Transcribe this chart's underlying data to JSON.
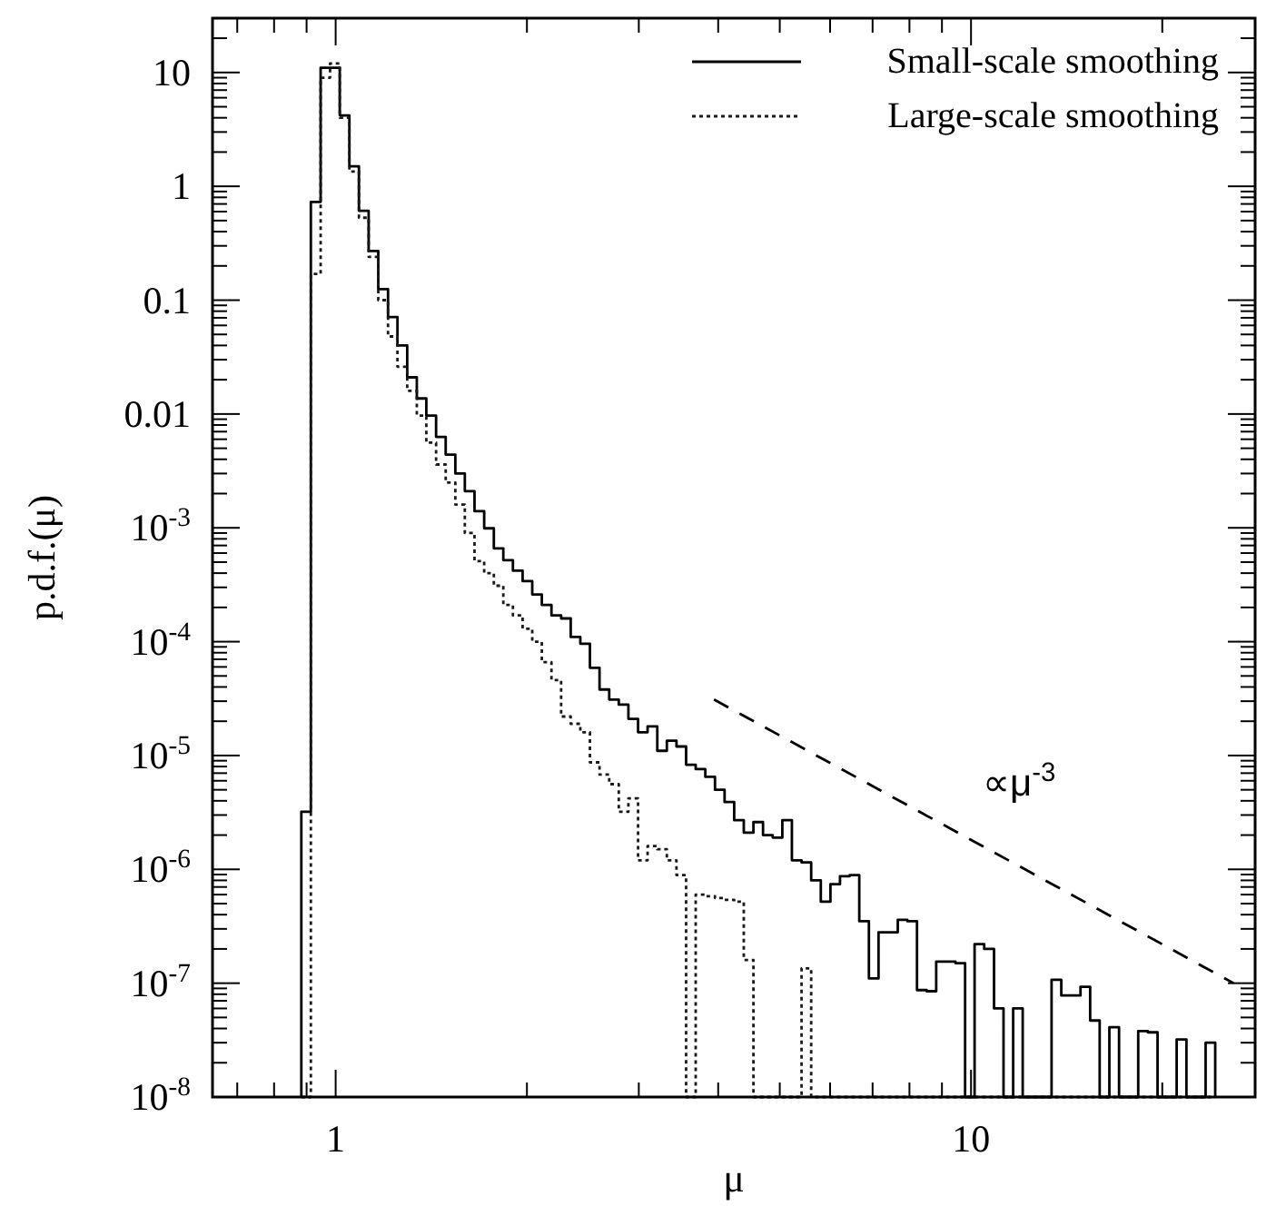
{
  "chart_data": {
    "type": "histogram",
    "xlabel": "μ",
    "ylabel": "p.d.f.(μ)",
    "log": "xy",
    "xlim": [
      0.64,
      28
    ],
    "ylim": [
      1e-08,
      30
    ],
    "xticks": [
      {
        "value": 0.7,
        "label": null
      },
      {
        "value": 0.8,
        "label": null
      },
      {
        "value": 0.9,
        "label": null
      },
      1,
      {
        "value": 2,
        "label": null
      },
      {
        "value": 3,
        "label": null
      },
      {
        "value": 4,
        "label": null
      },
      {
        "value": 5,
        "label": null
      },
      {
        "value": 6,
        "label": null
      },
      {
        "value": 7,
        "label": null
      },
      {
        "value": 8,
        "label": null
      },
      {
        "value": 9,
        "label": null
      },
      10,
      {
        "value": 20,
        "label": null
      }
    ],
    "yticks": [
      {
        "value": 1e-08,
        "label": "10$^{-8}$"
      },
      {
        "value": 1e-07,
        "label": "10$^{-7}$"
      },
      {
        "value": 1e-06,
        "label": "10$^{-6}$"
      },
      {
        "value": 1e-05,
        "label": "10$^{-5}$"
      },
      {
        "value": 0.0001,
        "label": "10$^{-4}$"
      },
      {
        "value": 0.001,
        "label": "10$^{-3}$"
      },
      {
        "value": 0.01,
        "label": "0.01"
      },
      {
        "value": 0.1,
        "label": "0.1"
      },
      1,
      10,
      {
        "value": 2e-08,
        "label": null
      },
      {
        "value": 3e-08,
        "label": null
      },
      {
        "value": 4e-08,
        "label": null
      },
      {
        "value": 5e-08,
        "label": null
      },
      {
        "value": 6e-08,
        "label": null
      },
      {
        "value": 7e-08,
        "label": null
      },
      {
        "value": 8e-08,
        "label": null
      },
      {
        "value": 9e-08,
        "label": null
      },
      {
        "value": 2e-07,
        "label": null
      },
      {
        "value": 3e-07,
        "label": null
      },
      {
        "value": 4e-07,
        "label": null
      },
      {
        "value": 5e-07,
        "label": null
      },
      {
        "value": 6e-07,
        "label": null
      },
      {
        "value": 7e-07,
        "label": null
      },
      {
        "value": 8e-07,
        "label": null
      },
      {
        "value": 9e-07,
        "label": null
      },
      {
        "value": 2e-06,
        "label": null
      },
      {
        "value": 3e-06,
        "label": null
      },
      {
        "value": 4e-06,
        "label": null
      },
      {
        "value": 5e-06,
        "label": null
      },
      {
        "value": 6e-06,
        "label": null
      },
      {
        "value": 7e-06,
        "label": null
      },
      {
        "value": 8e-06,
        "label": null
      },
      {
        "value": 9e-06,
        "label": null
      },
      {
        "value": 2e-05,
        "label": null
      },
      {
        "value": 3e-05,
        "label": null
      },
      {
        "value": 4e-05,
        "label": null
      },
      {
        "value": 5e-05,
        "label": null
      },
      {
        "value": 6e-05,
        "label": null
      },
      {
        "value": 7e-05,
        "label": null
      },
      {
        "value": 8e-05,
        "label": null
      },
      {
        "value": 9e-05,
        "label": null
      },
      {
        "value": 0.0002,
        "label": null
      },
      {
        "value": 0.0003,
        "label": null
      },
      {
        "value": 0.0004,
        "label": null
      },
      {
        "value": 0.0005,
        "label": null
      },
      {
        "value": 0.0006,
        "label": null
      },
      {
        "value": 0.0007,
        "label": null
      },
      {
        "value": 0.0008,
        "label": null
      },
      {
        "value": 0.0009,
        "label": null
      },
      {
        "value": 0.002,
        "label": null
      },
      {
        "value": 0.003,
        "label": null
      },
      {
        "value": 0.004,
        "label": null
      },
      {
        "value": 0.005,
        "label": null
      },
      {
        "value": 0.006,
        "label": null
      },
      {
        "value": 0.007,
        "label": null
      },
      {
        "value": 0.008,
        "label": null
      },
      {
        "value": 0.009,
        "label": null
      },
      {
        "value": 0.02,
        "label": null
      },
      {
        "value": 0.03,
        "label": null
      },
      {
        "value": 0.04,
        "label": null
      },
      {
        "value": 0.05,
        "label": null
      },
      {
        "value": 0.06,
        "label": null
      },
      {
        "value": 0.07,
        "label": null
      },
      {
        "value": 0.08,
        "label": null
      },
      {
        "value": 0.09,
        "label": null
      },
      {
        "value": 0.2,
        "label": null
      },
      {
        "value": 0.3,
        "label": null
      },
      {
        "value": 0.4,
        "label": null
      },
      {
        "value": 0.5,
        "label": null
      },
      {
        "value": 0.6,
        "label": null
      },
      {
        "value": 0.7,
        "label": null
      },
      {
        "value": 0.8,
        "label": null
      },
      {
        "value": 0.9,
        "label": null
      },
      {
        "value": 2,
        "label": null
      },
      {
        "value": 3,
        "label": null
      },
      {
        "value": 4,
        "label": null
      },
      {
        "value": 5,
        "label": null
      },
      {
        "value": 6,
        "label": null
      },
      {
        "value": 7,
        "label": null
      },
      {
        "value": 8,
        "label": null
      },
      {
        "value": 9,
        "label": null
      },
      {
        "value": 20,
        "label": null
      }
    ],
    "bins": [
      0.883,
      0.914,
      0.947,
      0.98,
      1.015,
      1.051,
      1.088,
      1.127,
      1.167,
      1.209,
      1.251,
      1.296,
      1.342,
      1.389,
      1.439,
      1.49,
      1.543,
      1.597,
      1.654,
      1.713,
      1.774,
      1.836,
      1.901,
      1.969,
      2.039,
      2.111,
      2.186,
      2.264,
      2.344,
      2.427,
      2.513,
      2.602,
      2.695,
      2.79,
      2.889,
      2.992,
      3.097,
      3.208,
      3.321,
      3.439,
      3.561,
      3.687,
      3.818,
      3.954,
      4.094,
      4.239,
      4.389,
      4.545,
      4.706,
      4.874,
      5.047,
      5.225,
      5.411,
      5.603,
      5.802,
      6.008,
      6.22,
      6.442,
      6.67,
      6.907,
      7.152,
      7.405,
      7.669,
      7.94,
      8.222,
      8.514,
      8.815,
      9.129,
      9.452,
      9.788,
      10.13,
      10.49,
      10.87,
      11.25,
      11.65,
      12.06,
      12.49,
      12.94,
      13.39,
      13.87,
      14.36,
      14.87,
      15.4,
      15.94,
      16.51,
      17.1,
      17.7,
      18.33,
      18.98,
      19.66,
      20.35,
      21.07,
      21.83,
      22.59,
      23.4,
      24.23
    ],
    "series": [
      {
        "name": "Small-scale smoothing",
        "color": "#000000",
        "line_style": "solid",
        "values": [
          3.2e-06,
          0.73,
          11,
          11,
          4.2,
          1.5,
          0.61,
          0.27,
          0.125,
          0.071,
          0.04,
          0.021,
          0.0137,
          0.0097,
          0.0063,
          0.0044,
          0.003,
          0.0021,
          0.0014,
          0.00099,
          0.00066,
          0.00052,
          0.00042,
          0.00034,
          0.00026,
          0.00021,
          0.00017,
          0.00016,
          0.00011,
          9.6e-05,
          5.9e-05,
          3.8e-05,
          3.1e-05,
          2.8e-05,
          2.1e-05,
          1.6e-05,
          1.8e-05,
          1.1e-05,
          1.35e-05,
          1.2e-05,
          8.3e-06,
          7.6e-06,
          6.5e-06,
          5e-06,
          3.9e-06,
          2.7e-06,
          2.1e-06,
          2.6e-06,
          2e-06,
          1.9e-06,
          2.7e-06,
          1.2e-06,
          1.15e-06,
          8e-07,
          5.2e-07,
          7.4e-07,
          8.7e-07,
          8.9e-07,
          3.5e-07,
          1.1e-07,
          2.8e-07,
          2.8e-07,
          3.6e-07,
          3.5e-07,
          8.7e-08,
          8.5e-08,
          1.55e-07,
          1.55e-07,
          1.5e-07,
          null,
          2.2e-07,
          2e-07,
          6e-08,
          null,
          6e-08,
          null,
          null,
          null,
          1.07e-07,
          7.8e-08,
          7.8e-08,
          9.3e-08,
          4.7e-08,
          null,
          4.1e-08,
          null,
          null,
          3.8e-08,
          3.7e-08,
          null,
          null,
          3.2e-08,
          null,
          null,
          3e-08
        ]
      },
      {
        "name": "Large-scale smoothing",
        "color": "#1a1a1a",
        "line_style": "dotted",
        "values": [
          null,
          0.17,
          9,
          12,
          4.0,
          1.35,
          0.53,
          0.24,
          0.1,
          0.048,
          0.026,
          0.016,
          0.0097,
          0.0056,
          0.0036,
          0.0025,
          0.0016,
          0.0009,
          0.00051,
          0.0004,
          0.00031,
          0.00021,
          0.00017,
          0.00013,
          0.0001,
          6.6e-05,
          4.6e-05,
          2.2e-05,
          1.9e-05,
          1.6e-05,
          8.7e-06,
          6.8e-06,
          5.6e-06,
          3.2e-06,
          4.2e-06,
          1.2e-06,
          1.6e-06,
          1.5e-06,
          1.2e-06,
          8.9e-07,
          null,
          6e-07,
          5.8e-07,
          5.6e-07,
          5.4e-07,
          5.2e-07,
          1.6e-07,
          null,
          null,
          null,
          null,
          null,
          1.35e-07,
          null,
          null,
          null,
          null,
          null,
          null,
          null,
          null,
          null,
          null,
          null,
          null,
          null,
          null,
          null,
          null,
          null,
          null,
          null,
          null,
          null,
          null,
          null,
          null,
          null,
          null,
          null,
          null,
          null,
          null,
          null,
          null,
          null,
          null,
          null,
          null,
          null,
          null,
          null,
          null,
          null,
          null
        ]
      },
      {
        "type": "line",
        "color": "#000000",
        "line_style": "dashed",
        "x": [
          3.94,
          25.9
        ],
        "values": [
          3.1e-05,
          1e-07
        ]
      }
    ],
    "annotations": [
      "∝μ$^{-3}$"
    ],
    "legend": "top right"
  }
}
